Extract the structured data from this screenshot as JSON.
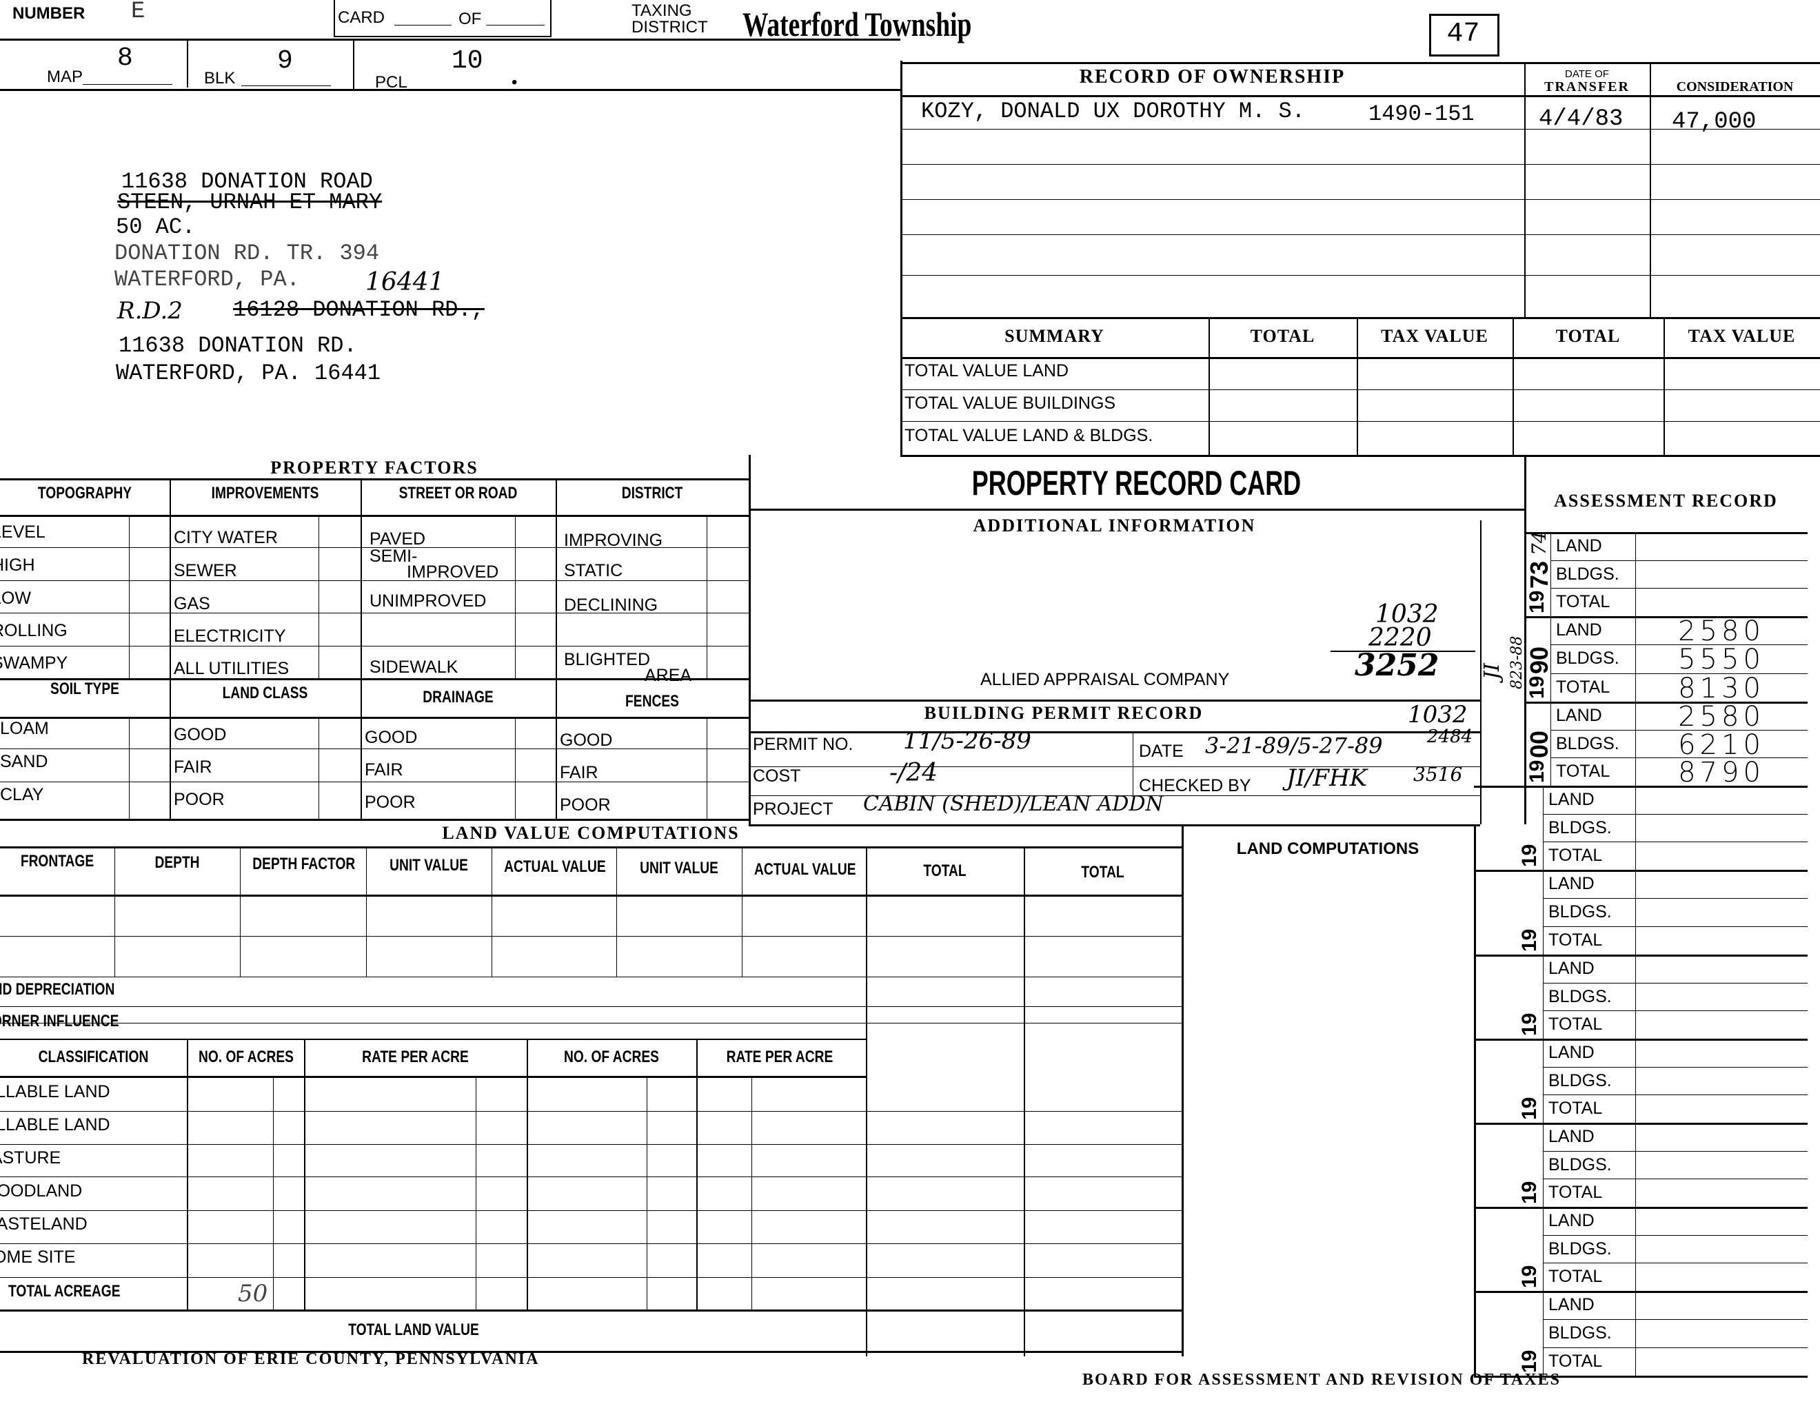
{
  "header": {
    "number_label": "NUMBER",
    "number_value": "E",
    "card_label": "CARD",
    "of_label": "OF",
    "taxing_label_1": "TAXING",
    "taxing_label_2": "DISTRICT",
    "district": "Waterford Township",
    "box_number": "47",
    "map_label": "MAP",
    "map": "8",
    "blk_label": "BLK",
    "blk": "9",
    "pcl_label": "PCL",
    "pcl": "10"
  },
  "address": {
    "lines": [
      "11638 DONATION ROAD",
      "STEEN, URNAH ET MARY",
      "50 AC.",
      "DONATION RD. TR. 394",
      "WATERFORD, PA.",
      "R.D.2",
      "16128 DONATION RD.,",
      "11638 DONATION RD.",
      "WATERFORD, PA. 16441"
    ],
    "zip_handwritten": "16441"
  },
  "ownership": {
    "title": "RECORD OF OWNERSHIP",
    "date_header_1": "DATE OF",
    "date_header_2": "TRANSFER",
    "consideration_header": "CONSIDERATION",
    "entries": [
      {
        "owner": "KOZY, DONALD UX DOROTHY M. S.",
        "deed": "1490-151",
        "date": "4/4/83",
        "consideration": "47,000"
      }
    ]
  },
  "summary": {
    "headers": [
      "SUMMARY",
      "TOTAL",
      "TAX VALUE",
      "TOTAL",
      "TAX VALUE"
    ],
    "rows": [
      "TOTAL VALUE LAND",
      "TOTAL VALUE BUILDINGS",
      "TOTAL VALUE LAND & BLDGS."
    ]
  },
  "property_factors": {
    "title": "PROPERTY FACTORS",
    "headers": [
      "TOPOGRAPHY",
      "IMPROVEMENTS",
      "STREET OR ROAD",
      "DISTRICT"
    ],
    "topography": [
      "LEVEL",
      "HIGH",
      "LOW",
      "ROLLING",
      "SWAMPY"
    ],
    "improvements": [
      "CITY WATER",
      "SEWER",
      "GAS",
      "ELECTRICITY",
      "ALL UTILITIES"
    ],
    "street": [
      "PAVED",
      "SEMI-",
      "IMPROVED",
      "UNIMPROVED",
      "SIDEWALK"
    ],
    "district": [
      "IMPROVING",
      "STATIC",
      "DECLINING",
      "BLIGHTED",
      "AREA"
    ],
    "headers2": [
      "SOIL TYPE",
      "LAND CLASS",
      "DRAINAGE",
      "FENCES"
    ],
    "soil": [
      "LOAM",
      "SAND",
      "CLAY"
    ],
    "quality": [
      "GOOD",
      "FAIR",
      "POOR"
    ]
  },
  "center": {
    "title": "PROPERTY RECORD CARD",
    "additional_info": "ADDITIONAL INFORMATION",
    "appraiser": "ALLIED APPRAISAL COMPANY",
    "hand_sum": [
      "1032",
      "2220",
      "3252"
    ],
    "side_note": [
      "JI",
      "823-88"
    ]
  },
  "permit": {
    "title": "BUILDING PERMIT RECORD",
    "permit_label": "PERMIT NO.",
    "permit_value": "11/5-26-89",
    "date_label": "DATE",
    "date_value": "3-21-89/5-27-89",
    "note_1032": "1032",
    "note_2484": "2484",
    "cost_label": "COST",
    "cost_value": "-/24",
    "checked_label": "CHECKED BY",
    "checked_value": "JI/FHK",
    "note_3516": "3516",
    "project_label": "PROJECT",
    "project_value": "CABIN (SHED)/LEAN ADDN"
  },
  "assessment": {
    "title": "ASSESSMENT RECORD",
    "row_labels": [
      "LAND",
      "BLDGS.",
      "TOTAL"
    ],
    "year_prefix": "19",
    "blocks": [
      {
        "year_suffix": "73",
        "year_over": "74",
        "land": "",
        "bldgs": "",
        "total": ""
      },
      {
        "year_suffix": "90",
        "land": "2580",
        "bldgs": "5550",
        "total": "8130"
      },
      {
        "year_suffix": "00",
        "land": "2580",
        "bldgs": "6210",
        "total": "8790"
      },
      {
        "year_suffix": "",
        "land": "",
        "bldgs": "",
        "total": ""
      },
      {
        "year_suffix": "",
        "land": "",
        "bldgs": "",
        "total": ""
      },
      {
        "year_suffix": "",
        "land": "",
        "bldgs": "",
        "total": ""
      },
      {
        "year_suffix": "",
        "land": "",
        "bldgs": "",
        "total": ""
      },
      {
        "year_suffix": "",
        "land": "",
        "bldgs": "",
        "total": ""
      },
      {
        "year_suffix": "",
        "land": "",
        "bldgs": "",
        "total": ""
      },
      {
        "year_suffix": "",
        "land": "",
        "bldgs": "",
        "total": ""
      }
    ]
  },
  "land_value": {
    "title": "LAND VALUE COMPUTATIONS",
    "headers": [
      "FRONTAGE",
      "DEPTH",
      "DEPTH FACTOR",
      "UNIT VALUE",
      "ACTUAL VALUE",
      "UNIT VALUE",
      "ACTUAL VALUE",
      "TOTAL",
      "TOTAL"
    ],
    "depreciation": "LAND DEPRECIATION",
    "corner": "CORNER INFLUENCE",
    "class_headers": [
      "CLASSIFICATION",
      "NO. OF ACRES",
      "RATE PER ACRE",
      "NO. OF ACRES",
      "RATE PER ACRE"
    ],
    "classes": [
      "TILLABLE LAND",
      "TILLABLE LAND",
      "PASTURE",
      "WOODLAND",
      "WASTELAND",
      "HOME SITE"
    ],
    "total_acreage": "TOTAL ACREAGE",
    "total_acreage_value": "50",
    "total_land_value": "TOTAL LAND VALUE",
    "land_computations": "LAND COMPUTATIONS"
  },
  "footer": {
    "left": "REVALUATION OF ERIE COUNTY, PENNSYLVANIA",
    "right": "BOARD FOR ASSESSMENT AND REVISION OF TAXES"
  }
}
